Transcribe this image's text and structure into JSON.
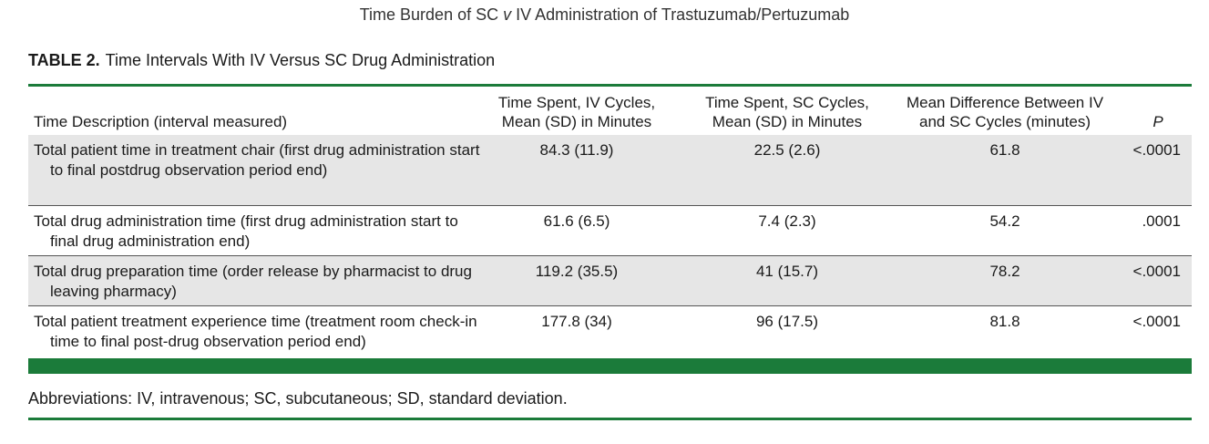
{
  "running_head": {
    "before": "Time Burden of SC ",
    "italic": "v",
    "after": " IV Administration of Trastuzumab/Pertuzumab"
  },
  "table_title": {
    "label": "TABLE 2.",
    "caption": "Time Intervals With IV Versus SC Drug Administration"
  },
  "columns": {
    "description": "Time Description (interval measured)",
    "iv": [
      "Time Spent, IV Cycles,",
      "Mean (SD) in Minutes"
    ],
    "sc": [
      "Time Spent, SC Cycles,",
      "Mean (SD) in Minutes"
    ],
    "diff": [
      "Mean Difference Between IV",
      "and SC Cycles (minutes)"
    ],
    "p": "P"
  },
  "rows": [
    {
      "description": "Total patient time in treatment chair (first drug administration start to final postdrug observation period end)",
      "iv": "84.3 (11.9)",
      "sc": "22.5 (2.6)",
      "diff": "61.8",
      "p": "<.0001"
    },
    {
      "description": "Total drug administration time (first drug administration start to final drug administration end)",
      "iv": "61.6 (6.5)",
      "sc": "7.4 (2.3)",
      "diff": "54.2",
      "p": ".0001"
    },
    {
      "description": "Total drug preparation time (order release by pharmacist to drug leaving pharmacy)",
      "iv": "119.2 (35.5)",
      "sc": "41 (15.7)",
      "diff": "78.2",
      "p": "<.0001"
    },
    {
      "description": "Total patient treatment experience time (treatment room check-in time to final post-drug observation period end)",
      "iv": "177.8 (34)",
      "sc": "96 (17.5)",
      "diff": "81.8",
      "p": "<.0001"
    }
  ],
  "footnote": "Abbreviations: IV, intravenous; SC, subcutaneous; SD, standard deviation.",
  "colors": {
    "accent_green": "#1b7b3a",
    "row_shade": "#e6e6e6"
  }
}
